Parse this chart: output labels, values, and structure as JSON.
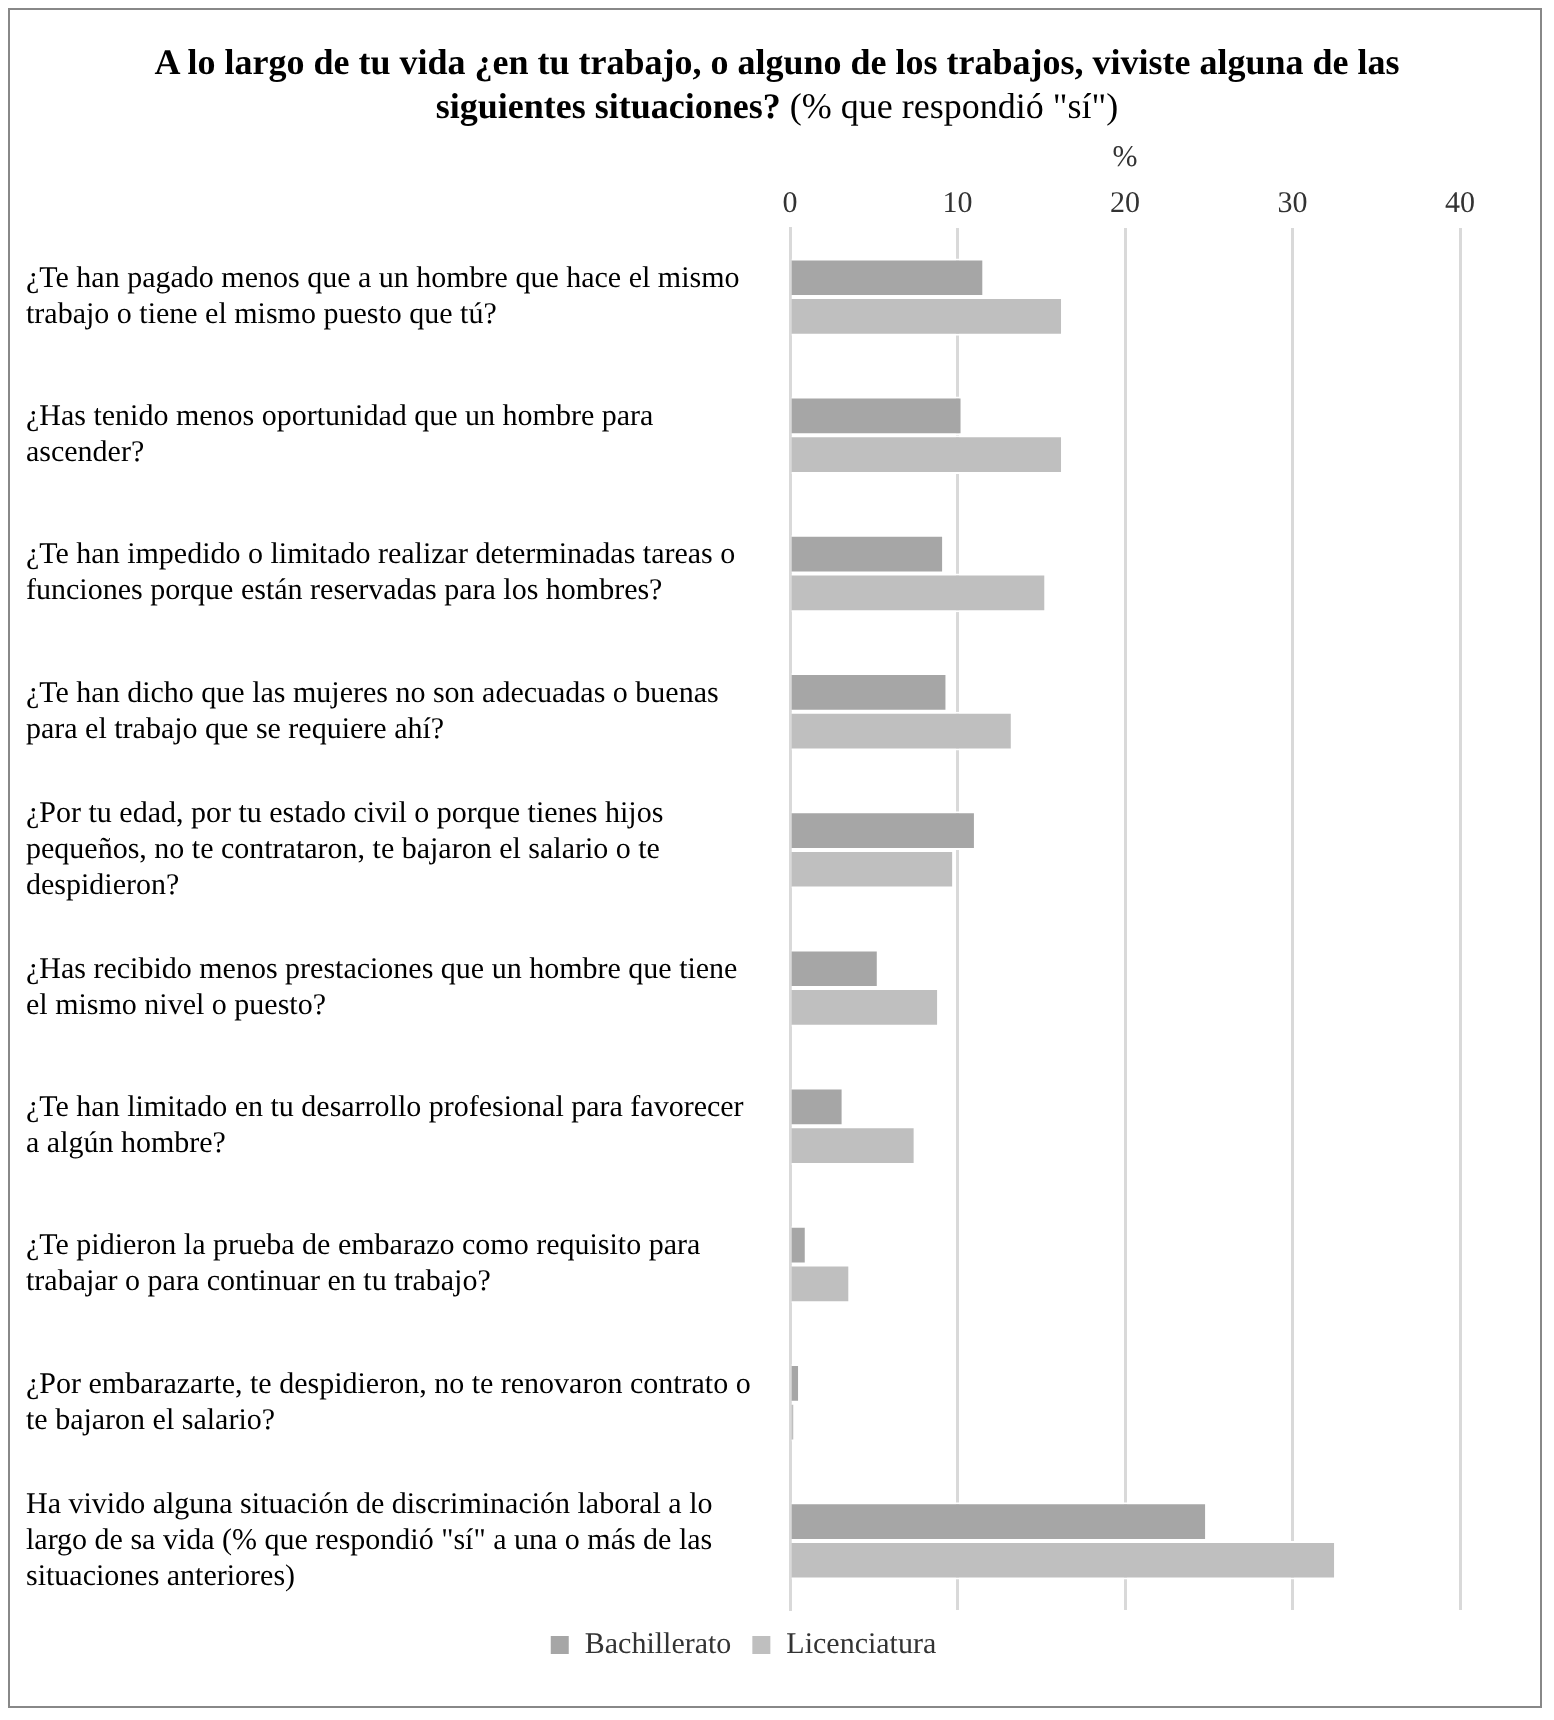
{
  "chart_data": {
    "type": "bar",
    "orientation": "horizontal",
    "title": "A lo largo de tu vida ¿en tu trabajo, o alguno de los trabajos, viviste alguna de las siguientes situaciones?",
    "subtitle": "(% que respondió \"sí\")",
    "xlabel": "%",
    "categories": [
      "¿Te han pagado menos que a un hombre que hace el mismo trabajo o tiene el mismo puesto que tú?",
      "¿Has tenido menos oportunidad que un hombre para ascender?",
      "¿Te han impedido o limitado realizar determinadas tareas o funciones porque están reservadas para los hombres?",
      "¿Te han dicho que las mujeres no son adecuadas o buenas para el trabajo que se requiere ahí?",
      "¿Por tu edad, por tu estado civil o porque tienes hijos pequeños, no te contrataron, te bajaron el salario o te despidieron?",
      "¿Has recibido menos prestaciones que un hombre que tiene el mismo nivel o puesto?",
      "¿Te han limitado en tu desarrollo profesional para favorecer a algún hombre?",
      "¿Te pidieron la prueba de embarazo como requisito para trabajar o para continuar en tu trabajo?",
      "¿Por embarazarte, te despidieron, no te renovaron contrato o te bajaron el salario?",
      "Ha vivido alguna situación de discriminación laboral a lo largo de sa vida (% que respondió \"sí\" a una o más de las situaciones anteriores)"
    ],
    "series": [
      {
        "name": "Bachillerato",
        "color": "#a6a6a6",
        "values": [
          11.6,
          10.3,
          9.2,
          9.4,
          11.1,
          5.3,
          3.2,
          1.0,
          0.6,
          24.9
        ]
      },
      {
        "name": "Licenciatura",
        "color": "#bfbfbf",
        "values": [
          16.3,
          16.3,
          15.3,
          13.3,
          9.8,
          8.9,
          7.5,
          3.6,
          0.3,
          32.6
        ]
      }
    ],
    "xlim": [
      0,
      40
    ],
    "xticks": [
      0,
      10,
      20,
      30,
      40
    ],
    "grid": "x",
    "legend": "bottom"
  }
}
